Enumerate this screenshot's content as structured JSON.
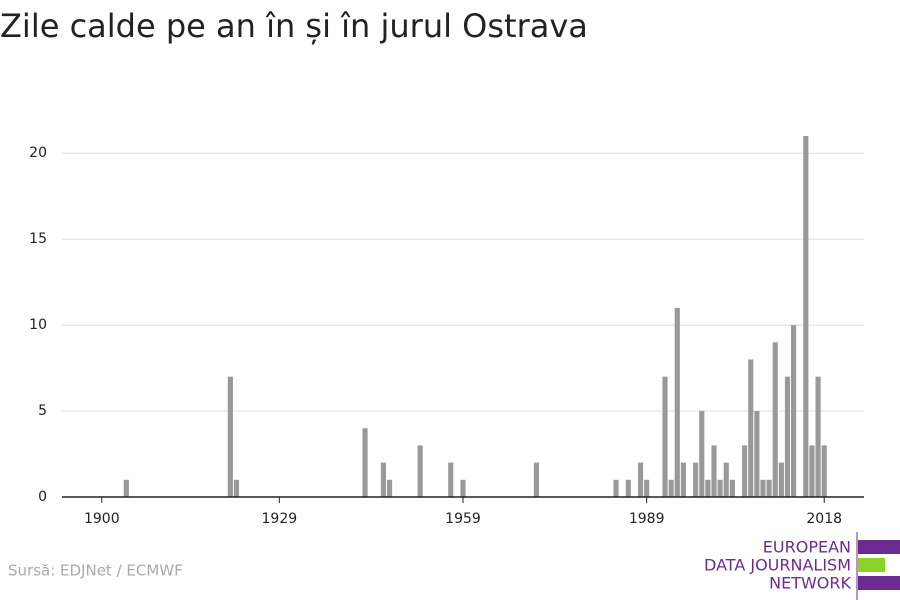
{
  "chart_data": {
    "type": "bar",
    "title": "Zile calde pe an în și în jurul Ostrava",
    "x": [
      1904,
      1921,
      1922,
      1943,
      1946,
      1947,
      1952,
      1957,
      1959,
      1971,
      1984,
      1986,
      1988,
      1989,
      1992,
      1993,
      1994,
      1995,
      1997,
      1998,
      1999,
      2000,
      2001,
      2002,
      2003,
      2005,
      2006,
      2007,
      2008,
      2009,
      2010,
      2011,
      2012,
      2013,
      2015,
      2016,
      2017,
      2018
    ],
    "values": [
      1,
      7,
      1,
      4,
      2,
      1,
      3,
      2,
      1,
      2,
      1,
      1,
      2,
      1,
      7,
      1,
      11,
      2,
      2,
      5,
      1,
      3,
      1,
      2,
      1,
      3,
      8,
      5,
      1,
      1,
      9,
      2,
      7,
      10,
      21,
      3,
      7,
      3
    ],
    "color": "#999999",
    "xlim": [
      1893.5,
      2024.5
    ],
    "xticks": [
      1900,
      1929,
      1959,
      1989,
      2018
    ],
    "ylim": [
      0,
      21
    ],
    "yticks": [
      0,
      5,
      10,
      15,
      20
    ],
    "grid": true,
    "source": "Sursă: EDJNet / ECMWF",
    "logo": [
      "EUROPEAN",
      "DATA JOURNALISM",
      "NETWORK"
    ]
  }
}
